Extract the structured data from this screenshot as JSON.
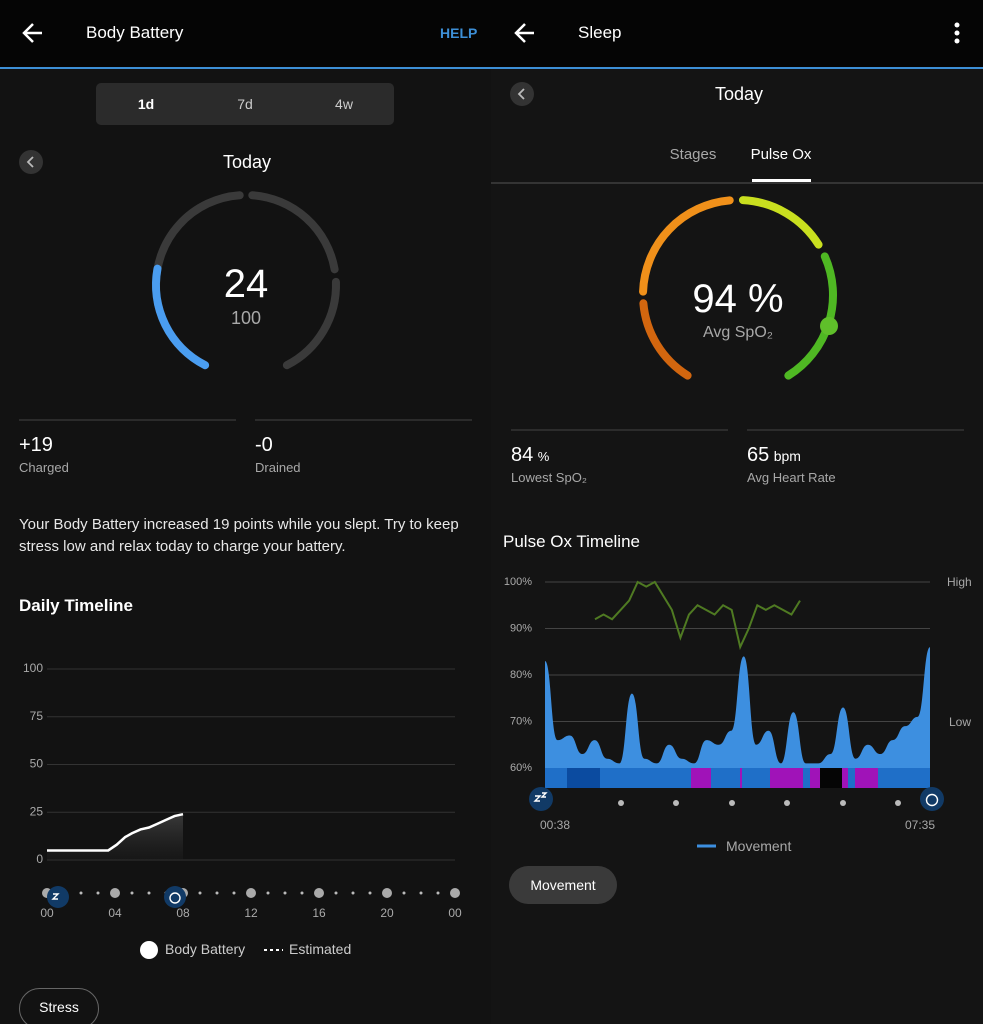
{
  "left": {
    "header": {
      "title": "Body Battery",
      "help": "HELP"
    },
    "tabs": [
      "1d",
      "7d",
      "4w"
    ],
    "date": "Today",
    "gauge": {
      "value": 24,
      "max": 100
    },
    "stats": [
      {
        "value": "+19",
        "label": "Charged"
      },
      {
        "value": "-0",
        "label": "Drained"
      }
    ],
    "summary": "Your Body Battery increased 19 points while you slept. Try to keep stress low and relax today to charge your battery.",
    "timeline": {
      "title": "Daily Timeline",
      "type": "line",
      "ylim": [
        0,
        100
      ],
      "yticks": [
        0,
        25,
        50,
        75,
        100
      ],
      "xlim": [
        0,
        24
      ],
      "xticks": [
        {
          "value": 0,
          "label": "00"
        },
        {
          "value": 4,
          "label": "04"
        },
        {
          "value": 8,
          "label": "08"
        },
        {
          "value": 12,
          "label": "12"
        },
        {
          "value": 16,
          "label": "16"
        },
        {
          "value": 20,
          "label": "20"
        },
        {
          "value": 24,
          "label": "00"
        }
      ],
      "x": [
        0,
        3.6,
        4.1,
        4.6,
        5.0,
        5.5,
        6.0,
        6.5,
        7.0,
        7.5,
        8.0
      ],
      "values": [
        5,
        5,
        8,
        12,
        14,
        16,
        17,
        19,
        21,
        23,
        24
      ],
      "color": "#ffffff",
      "legend": [
        "Body Battery",
        "Estimated"
      ]
    },
    "button": "Stress"
  },
  "right": {
    "header": {
      "title": "Sleep"
    },
    "date": "Today",
    "tabs": [
      "Stages",
      "Pulse Ox"
    ],
    "gauge": {
      "value": 94,
      "unit": "%",
      "label": "Avg SpO₂"
    },
    "stats": [
      {
        "value": 84,
        "unit": "%",
        "label": "Lowest SpO₂"
      },
      {
        "value": 65,
        "unit": "bpm",
        "label": "Avg Heart Rate"
      }
    ],
    "timeline": {
      "title": "Pulse Ox Timeline",
      "type": "line",
      "ylim": [
        60,
        100
      ],
      "yticks": [
        {
          "value": 60,
          "label": "60%"
        },
        {
          "value": 70,
          "label": "70%"
        },
        {
          "value": 80,
          "label": "80%"
        },
        {
          "value": 90,
          "label": "90%"
        },
        {
          "value": 100,
          "label": "100%"
        }
      ],
      "levels": [
        "High",
        "Low"
      ],
      "start": "00:38",
      "end": "07:35",
      "series": [
        {
          "color": "#4f7a22",
          "values": [
            92,
            93,
            92,
            94,
            96,
            100,
            99,
            100,
            97,
            94,
            88,
            93,
            95,
            94,
            93,
            95,
            94,
            86,
            90,
            95,
            94,
            95,
            94,
            93,
            96
          ]
        },
        {
          "name": "Movement",
          "color": "#3d8fe0",
          "values": [
            83,
            66,
            67,
            63,
            66,
            62,
            61,
            76,
            62,
            61,
            65,
            62,
            61,
            66,
            65,
            68,
            84,
            65,
            68,
            61,
            72,
            61,
            61,
            63,
            73,
            62,
            65,
            63,
            66,
            69,
            71,
            86
          ]
        }
      ]
    },
    "button": "Movement"
  }
}
